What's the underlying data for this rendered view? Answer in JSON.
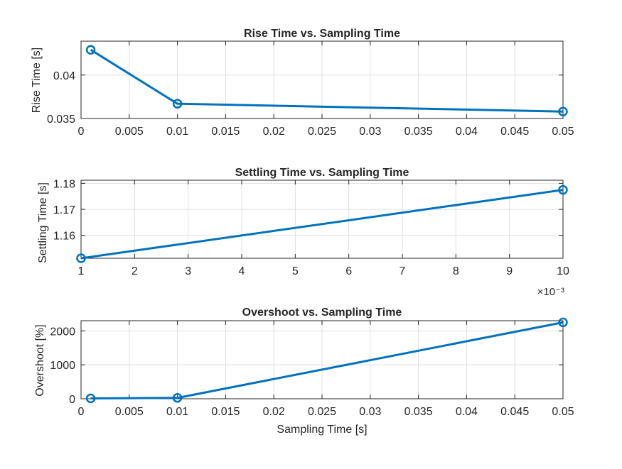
{
  "chart_data": [
    {
      "type": "line",
      "title": "Rise Time vs. Sampling Time",
      "xlabel": "",
      "ylabel": "Rise Time [s]",
      "x": [
        0.001,
        0.01,
        0.05
      ],
      "y": [
        0.0429,
        0.0367,
        0.0358
      ],
      "xlim": [
        0,
        0.05
      ],
      "ylim": [
        0.035,
        0.0439
      ],
      "xticks": [
        0,
        0.005,
        0.01,
        0.015,
        0.02,
        0.025,
        0.03,
        0.035,
        0.04,
        0.045,
        0.05
      ],
      "xtick_labels": [
        "0",
        "0.005",
        "0.01",
        "0.015",
        "0.02",
        "0.025",
        "0.03",
        "0.035",
        "0.04",
        "0.045",
        "0.05"
      ],
      "yticks": [
        0.035,
        0.04
      ],
      "ytick_labels": [
        "0.035",
        "0.04"
      ],
      "x_exponent_label": "",
      "grid": true,
      "color": "#0072BD",
      "marker": "circle"
    },
    {
      "type": "line",
      "title": "Settling Time vs. Sampling Time",
      "xlabel": "",
      "ylabel": "Settling Time [s]",
      "x": [
        0.001,
        0.01
      ],
      "y": [
        1.1512,
        1.1775
      ],
      "xlim": [
        0.001,
        0.01
      ],
      "ylim": [
        1.1512,
        1.1812
      ],
      "xticks": [
        0.001,
        0.002,
        0.003,
        0.004,
        0.005,
        0.006,
        0.007,
        0.008,
        0.009,
        0.01
      ],
      "xtick_labels": [
        "1",
        "2",
        "3",
        "4",
        "5",
        "6",
        "7",
        "8",
        "9",
        "10"
      ],
      "yticks": [
        1.16,
        1.17,
        1.18
      ],
      "ytick_labels": [
        "1.16",
        "1.17",
        "1.18"
      ],
      "x_exponent_label": "×10⁻³",
      "grid": true,
      "color": "#0072BD",
      "marker": "circle"
    },
    {
      "type": "line",
      "title": "Overshoot vs. Sampling Time",
      "xlabel": "Sampling Time [s]",
      "ylabel": "Overshoot [%]",
      "x": [
        0.001,
        0.01,
        0.05
      ],
      "y": [
        10,
        25,
        2250
      ],
      "xlim": [
        0,
        0.05
      ],
      "ylim": [
        0,
        2300
      ],
      "xticks": [
        0,
        0.005,
        0.01,
        0.015,
        0.02,
        0.025,
        0.03,
        0.035,
        0.04,
        0.045,
        0.05
      ],
      "xtick_labels": [
        "0",
        "0.005",
        "0.01",
        "0.015",
        "0.02",
        "0.025",
        "0.03",
        "0.035",
        "0.04",
        "0.045",
        "0.05"
      ],
      "yticks": [
        0,
        1000,
        2000
      ],
      "ytick_labels": [
        "0",
        "1000",
        "2000"
      ],
      "x_exponent_label": "",
      "grid": true,
      "color": "#0072BD",
      "marker": "circle"
    }
  ]
}
